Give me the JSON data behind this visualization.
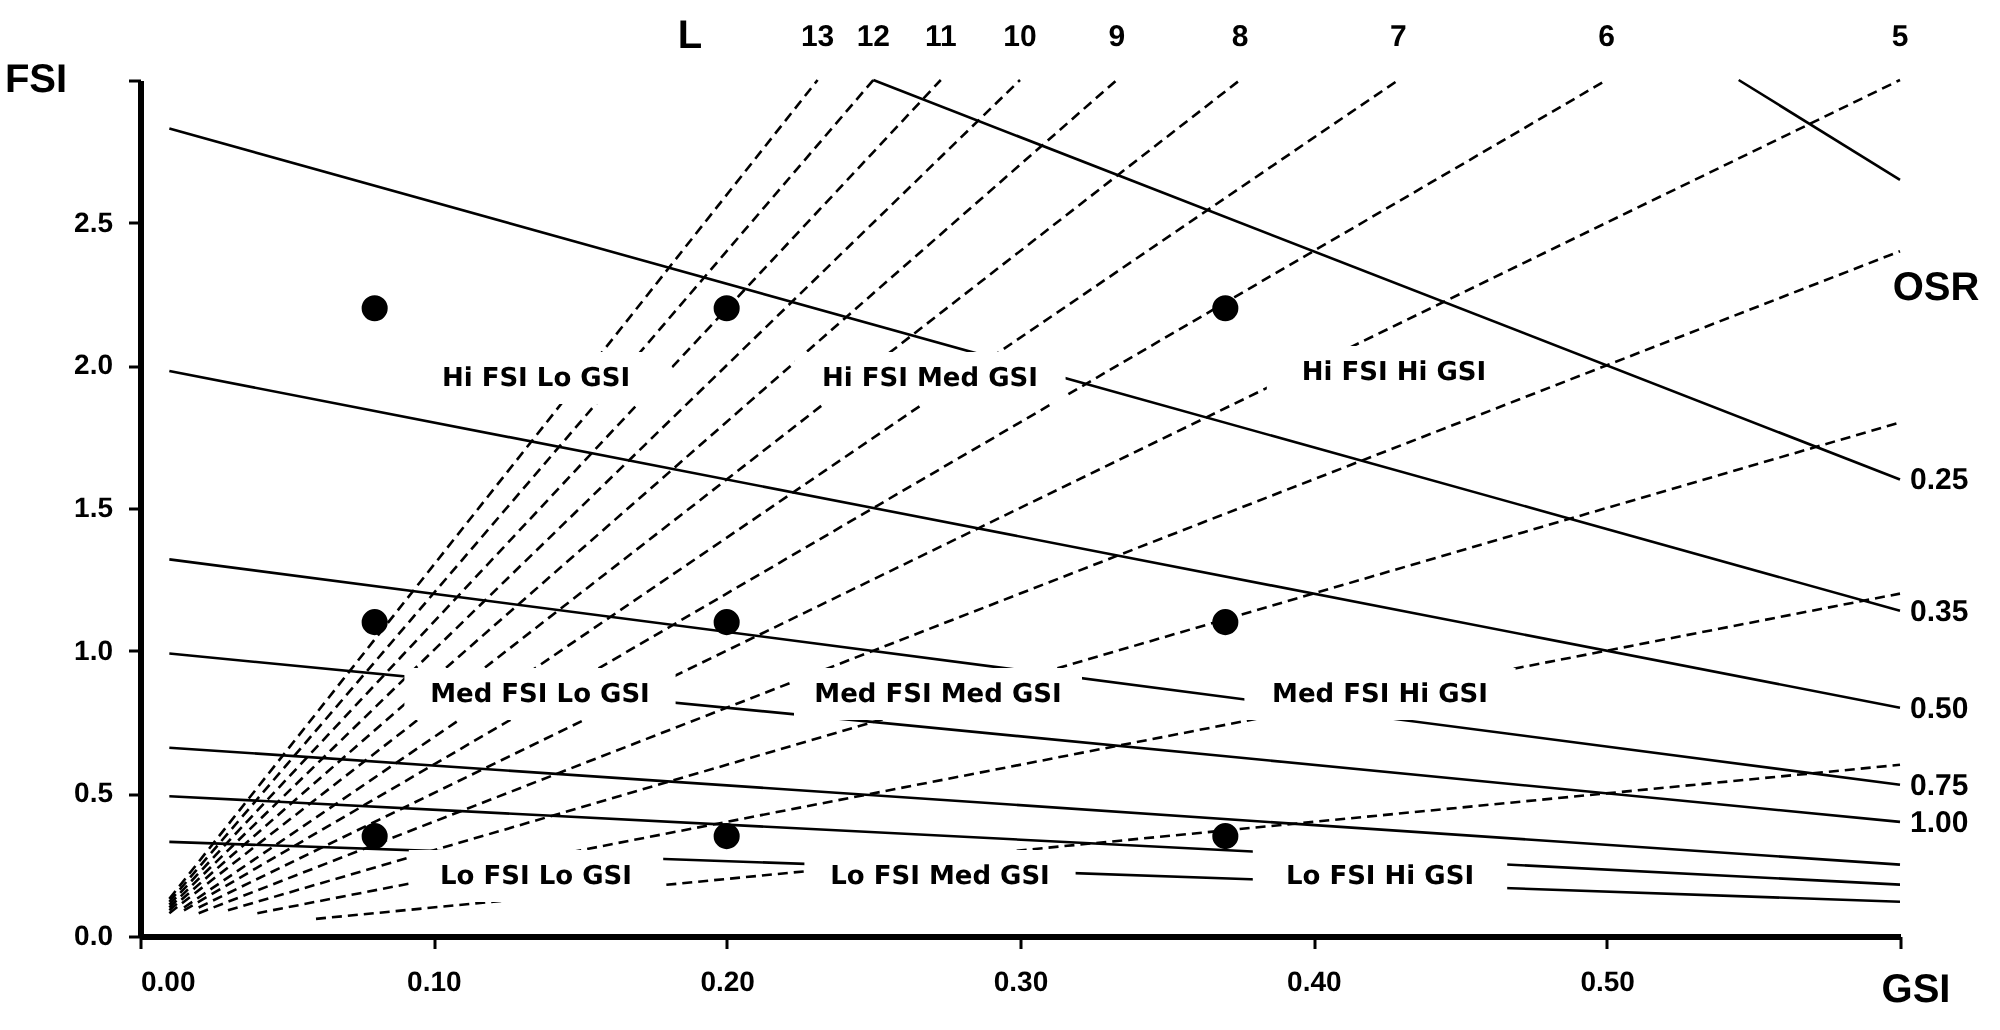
{
  "chart_data": {
    "type": "line",
    "xlabel": "GSI",
    "ylabel": "FSI",
    "xlim": [
      0,
      0.6
    ],
    "ylim": [
      0,
      3.0
    ],
    "xticks": [
      {
        "value": 0,
        "label": "0.00"
      },
      {
        "value": 0.1,
        "label": "0.10"
      },
      {
        "value": 0.2,
        "label": "0.20"
      },
      {
        "value": 0.3,
        "label": "0.30"
      },
      {
        "value": 0.4,
        "label": "0.40"
      },
      {
        "value": 0.5,
        "label": "0.50"
      },
      {
        "value": 0.6,
        "label": null
      }
    ],
    "yticks": [
      {
        "value": 0,
        "label": "0.0"
      },
      {
        "value": 0.5,
        "label": "0.5"
      },
      {
        "value": 1.0,
        "label": "1.0"
      },
      {
        "value": 1.5,
        "label": "1.5"
      },
      {
        "value": 2.0,
        "label": "2.0"
      },
      {
        "value": 2.5,
        "label": "2.5"
      },
      {
        "value": 3.0,
        "label": null
      }
    ],
    "grid": false,
    "series": [
      {
        "name": "13",
        "color": "#000000",
        "line_style": "dashed",
        "x": [
          0.01,
          0.231
        ],
        "values": [
          0.13,
          3.0
        ]
      },
      {
        "name": "12",
        "color": "#000000",
        "line_style": "dashed",
        "x": [
          0.01,
          0.25
        ],
        "values": [
          0.12,
          3.0
        ]
      },
      {
        "name": "11",
        "color": "#000000",
        "line_style": "dashed",
        "x": [
          0.01,
          0.273
        ],
        "values": [
          0.11,
          3.0
        ]
      },
      {
        "name": "10",
        "color": "#000000",
        "line_style": "dashed",
        "x": [
          0.01,
          0.3
        ],
        "values": [
          0.1,
          3.0
        ]
      },
      {
        "name": "9",
        "color": "#000000",
        "line_style": "dashed",
        "x": [
          0.01,
          0.333
        ],
        "values": [
          0.09,
          3.0
        ]
      },
      {
        "name": "8",
        "color": "#000000",
        "line_style": "dashed",
        "x": [
          0.01,
          0.375
        ],
        "values": [
          0.08,
          3.0
        ]
      },
      {
        "name": "7",
        "color": "#000000",
        "line_style": "dashed",
        "x": [
          0.015,
          0.429
        ],
        "values": [
          0.1,
          3.0
        ]
      },
      {
        "name": "6",
        "color": "#000000",
        "line_style": "dashed",
        "x": [
          0.015,
          0.5
        ],
        "values": [
          0.09,
          3.0
        ]
      },
      {
        "name": "5",
        "color": "#000000",
        "line_style": "dashed",
        "x": [
          0.02,
          0.6
        ],
        "values": [
          0.1,
          3.0
        ]
      },
      {
        "color": "#000000",
        "line_style": "dashed",
        "x": [
          0.02,
          0.6
        ],
        "values": [
          0.08,
          2.4
        ]
      },
      {
        "color": "#000000",
        "line_style": "dashed",
        "x": [
          0.03,
          0.6
        ],
        "values": [
          0.09,
          1.8
        ]
      },
      {
        "color": "#000000",
        "line_style": "dashed",
        "x": [
          0.04,
          0.6
        ],
        "values": [
          0.08,
          1.2
        ]
      },
      {
        "color": "#000000",
        "line_style": "dashed",
        "x": [
          0.06,
          0.6
        ],
        "values": [
          0.06,
          0.6
        ]
      },
      {
        "color": "#000000",
        "line_style": "solid",
        "x": [
          0.545,
          0.6
        ],
        "values": [
          3.0,
          2.65
        ]
      },
      {
        "name": "0.25",
        "color": "#000000",
        "line_style": "solid",
        "x": [
          0.25,
          0.6
        ],
        "values": [
          3.0,
          1.6
        ]
      },
      {
        "name": "0.35",
        "color": "#000000",
        "line_style": "solid",
        "x": [
          0.01,
          0.6
        ],
        "values": [
          2.83,
          1.14
        ]
      },
      {
        "name": "0.50",
        "color": "#000000",
        "line_style": "solid",
        "x": [
          0.01,
          0.6
        ],
        "values": [
          1.98,
          0.8
        ]
      },
      {
        "name": "0.75",
        "color": "#000000",
        "line_style": "solid",
        "x": [
          0.01,
          0.6
        ],
        "values": [
          1.32,
          0.53
        ]
      },
      {
        "name": "1.00",
        "color": "#000000",
        "line_style": "solid",
        "x": [
          0.01,
          0.6
        ],
        "values": [
          0.99,
          0.4
        ]
      },
      {
        "color": "#000000",
        "line_style": "solid",
        "x": [
          0.01,
          0.6
        ],
        "values": [
          0.66,
          0.25
        ]
      },
      {
        "color": "#000000",
        "line_style": "solid",
        "x": [
          0.01,
          0.6
        ],
        "values": [
          0.49,
          0.18
        ]
      },
      {
        "color": "#000000",
        "line_style": "solid",
        "x": [
          0.01,
          0.6
        ],
        "values": [
          0.33,
          0.12
        ]
      },
      {
        "type": "scatter",
        "marker": "circle",
        "color": "#000000",
        "x": [
          0.08,
          0.2,
          0.37,
          0.08,
          0.2,
          0.37,
          0.08,
          0.2,
          0.37
        ],
        "values": [
          2.2,
          2.2,
          2.2,
          1.1,
          1.1,
          1.1,
          0.35,
          0.35,
          0.35
        ]
      }
    ],
    "annotations": [
      "L",
      "OSR",
      "Hi FSI  Lo GSI",
      "Hi FSI Med GSI",
      "Hi FSI Hi GSI",
      "Med FSI Lo GSI",
      "Med FSI Med GSI",
      "Med FSI Hi GSI",
      "Lo FSI Lo GSI",
      "Lo FSI Med GSI",
      "Lo FSI Hi GSI"
    ]
  }
}
